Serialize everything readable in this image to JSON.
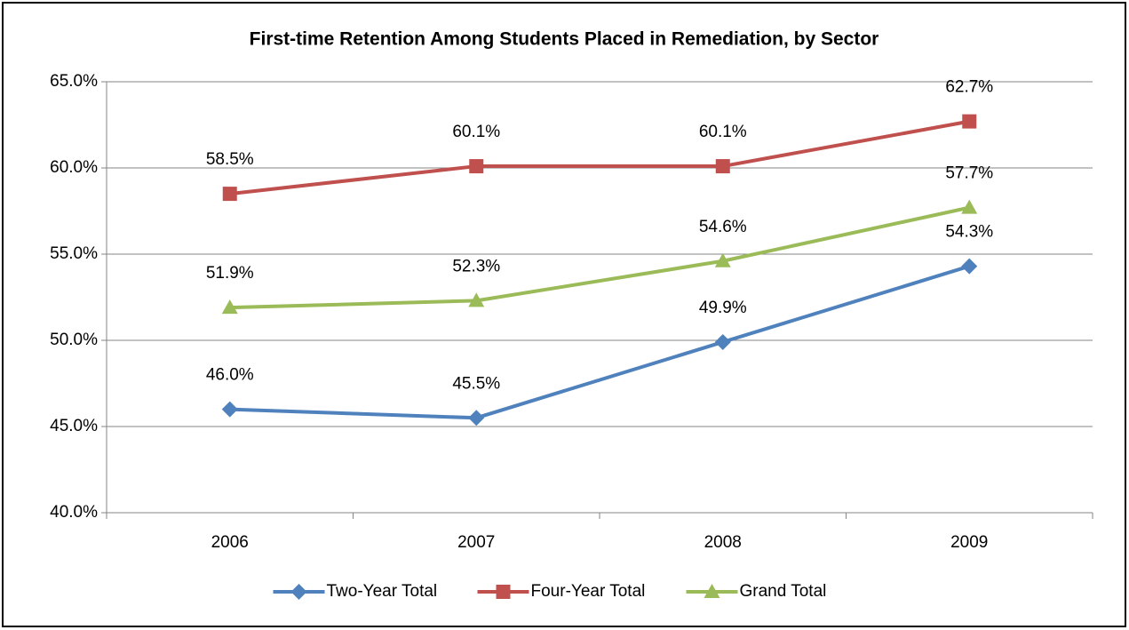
{
  "chart_data": {
    "type": "line",
    "title": "First-time Retention Among Students Placed in Remediation, by Sector",
    "categories": [
      "2006",
      "2007",
      "2008",
      "2009"
    ],
    "series": [
      {
        "name": "Two-Year Total",
        "color": "#4f81bd",
        "marker": "diamond",
        "values": [
          46.0,
          45.5,
          49.9,
          54.3
        ],
        "value_labels": [
          "46.0%",
          "45.5%",
          "49.9%",
          "54.3%"
        ]
      },
      {
        "name": "Four-Year Total",
        "color": "#c0504d",
        "marker": "square",
        "values": [
          58.5,
          60.1,
          60.1,
          62.7
        ],
        "value_labels": [
          "58.5%",
          "60.1%",
          "60.1%",
          "62.7%"
        ]
      },
      {
        "name": "Grand Total",
        "color": "#9bbb59",
        "marker": "triangle",
        "values": [
          51.9,
          52.3,
          54.6,
          57.7
        ],
        "value_labels": [
          "51.9%",
          "52.3%",
          "54.6%",
          "57.7%"
        ]
      }
    ],
    "ylim": [
      40,
      65
    ],
    "yticks": [
      {
        "value": 40,
        "label": "40.0%"
      },
      {
        "value": 45,
        "label": "45.0%"
      },
      {
        "value": 50,
        "label": "50.0%"
      },
      {
        "value": 55,
        "label": "55.0%"
      },
      {
        "value": 60,
        "label": "60.0%"
      },
      {
        "value": 65,
        "label": "65.0%"
      }
    ],
    "grid": true,
    "legend": "bottom"
  }
}
